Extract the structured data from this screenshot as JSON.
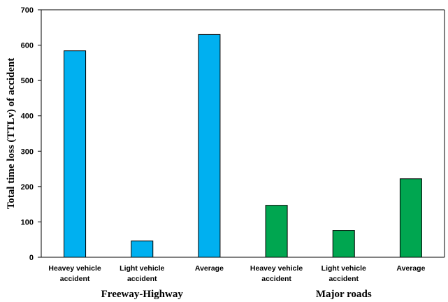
{
  "chart_data": {
    "type": "bar",
    "ylabel": "Total time loss (TTLv) of accident",
    "ylim": [
      0,
      700
    ],
    "yticks": [
      0,
      100,
      200,
      300,
      400,
      500,
      600,
      700
    ],
    "grid": false,
    "legend": "none",
    "categories": [
      [
        "Heavey vehicle",
        "accident"
      ],
      [
        "Light vehicle",
        "accident"
      ],
      [
        "Average"
      ],
      [
        "Heavey vehicle",
        "accident"
      ],
      [
        "Light vehicle",
        "accident"
      ],
      [
        "Average"
      ]
    ],
    "values": [
      584,
      46,
      630,
      147,
      76,
      222
    ],
    "bar_colors": [
      "#00B0F0",
      "#00B0F0",
      "#00B0F0",
      "#00A650",
      "#00A650",
      "#00A650"
    ],
    "groups": [
      {
        "label": "Freeway-Highway",
        "indices": [
          0,
          1,
          2
        ]
      },
      {
        "label": "Major roads",
        "indices": [
          3,
          4,
          5
        ]
      }
    ]
  }
}
